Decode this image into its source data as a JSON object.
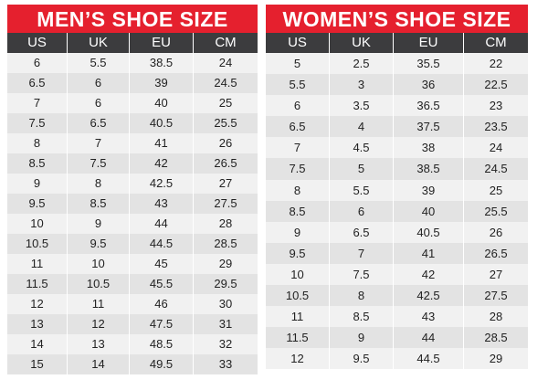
{
  "men": {
    "title": "MEN’S SHOE SIZE",
    "columns": [
      "US",
      "UK",
      "EU",
      "CM"
    ],
    "rows": [
      [
        "6",
        "5.5",
        "38.5",
        "24"
      ],
      [
        "6.5",
        "6",
        "39",
        "24.5"
      ],
      [
        "7",
        "6",
        "40",
        "25"
      ],
      [
        "7.5",
        "6.5",
        "40.5",
        "25.5"
      ],
      [
        "8",
        "7",
        "41",
        "26"
      ],
      [
        "8.5",
        "7.5",
        "42",
        "26.5"
      ],
      [
        "9",
        "8",
        "42.5",
        "27"
      ],
      [
        "9.5",
        "8.5",
        "43",
        "27.5"
      ],
      [
        "10",
        "9",
        "44",
        "28"
      ],
      [
        "10.5",
        "9.5",
        "44.5",
        "28.5"
      ],
      [
        "11",
        "10",
        "45",
        "29"
      ],
      [
        "11.5",
        "10.5",
        "45.5",
        "29.5"
      ],
      [
        "12",
        "11",
        "46",
        "30"
      ],
      [
        "13",
        "12",
        "47.5",
        "31"
      ],
      [
        "14",
        "13",
        "48.5",
        "32"
      ],
      [
        "15",
        "14",
        "49.5",
        "33"
      ]
    ]
  },
  "women": {
    "title": "WOMEN’S SHOE SIZE",
    "columns": [
      "US",
      "UK",
      "EU",
      "CM"
    ],
    "rows": [
      [
        "5",
        "2.5",
        "35.5",
        "22"
      ],
      [
        "5.5",
        "3",
        "36",
        "22.5"
      ],
      [
        "6",
        "3.5",
        "36.5",
        "23"
      ],
      [
        "6.5",
        "4",
        "37.5",
        "23.5"
      ],
      [
        "7",
        "4.5",
        "38",
        "24"
      ],
      [
        "7.5",
        "5",
        "38.5",
        "24.5"
      ],
      [
        "8",
        "5.5",
        "39",
        "25"
      ],
      [
        "8.5",
        "6",
        "40",
        "25.5"
      ],
      [
        "9",
        "6.5",
        "40.5",
        "26"
      ],
      [
        "9.5",
        "7",
        "41",
        "26.5"
      ],
      [
        "10",
        "7.5",
        "42",
        "27"
      ],
      [
        "10.5",
        "8",
        "42.5",
        "27.5"
      ],
      [
        "11",
        "8.5",
        "43",
        "28"
      ],
      [
        "11.5",
        "9",
        "44",
        "28.5"
      ],
      [
        "12",
        "9.5",
        "44.5",
        "29"
      ]
    ]
  },
  "colors": {
    "banner": "#e5202e",
    "header": "#3c3c3e",
    "row_light": "#f1f1f1",
    "row_dark": "#e3e3e3"
  }
}
